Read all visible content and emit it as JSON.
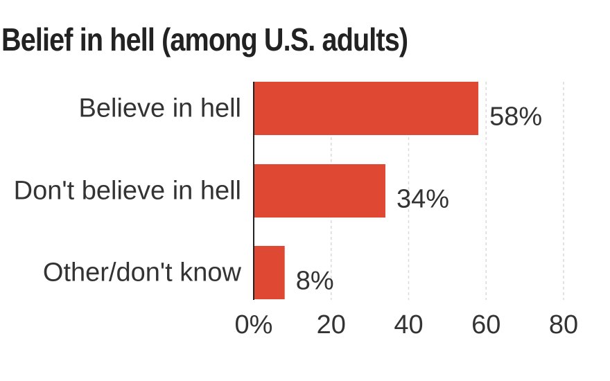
{
  "title": "Belief in hell (among U.S. adults)",
  "colors": {
    "bar": "#df4934",
    "grid": "#d9d9d9",
    "axis": "#222222",
    "text": "#333333"
  },
  "chart_data": {
    "type": "bar",
    "orientation": "horizontal",
    "title": "Belief in hell (among U.S. adults)",
    "categories": [
      "Believe in hell",
      "Don't believe in hell",
      "Other/don't know"
    ],
    "values": [
      58,
      34,
      8
    ],
    "value_labels": [
      "58%",
      "34%",
      "8%"
    ],
    "xlim": [
      0,
      80
    ],
    "x_ticks": [
      0,
      20,
      40,
      60,
      80
    ],
    "x_tick_labels": [
      "0%",
      "20",
      "40",
      "60",
      "80"
    ],
    "xlabel": "",
    "ylabel": "",
    "grid": true,
    "legend": "none"
  }
}
